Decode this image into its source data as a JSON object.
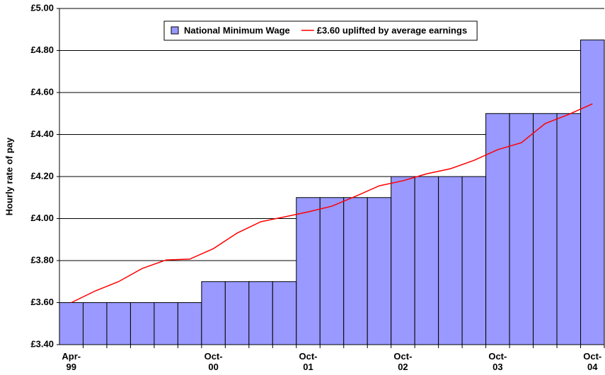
{
  "chart_data": {
    "type": "bar-line",
    "y_label": "Hourly rate of pay",
    "categories": [
      "Apr-\n99",
      null,
      null,
      null,
      null,
      null,
      "Oct-\n00",
      null,
      null,
      null,
      "Oct-\n01",
      null,
      null,
      null,
      "Oct-\n02",
      null,
      null,
      null,
      "Oct-\n03",
      null,
      null,
      null,
      "Oct-\n04"
    ],
    "series": [
      {
        "name": "National Minimum Wage",
        "kind": "bar",
        "color": "#9999ff",
        "values": [
          3.6,
          3.6,
          3.6,
          3.6,
          3.6,
          3.6,
          3.7,
          3.7,
          3.7,
          3.7,
          4.1,
          4.1,
          4.1,
          4.1,
          4.2,
          4.2,
          4.2,
          4.2,
          4.5,
          4.5,
          4.5,
          4.5,
          4.85
        ]
      },
      {
        "name": "£3.60 uplifted by average earnings",
        "kind": "line",
        "color": "#ff0000",
        "values": [
          3.6,
          3.655,
          3.7,
          3.763,
          3.803,
          3.807,
          3.857,
          3.931,
          3.985,
          4.008,
          4.032,
          4.059,
          4.106,
          4.156,
          4.18,
          4.213,
          4.237,
          4.277,
          4.328,
          4.361,
          4.452,
          4.496,
          4.546
        ]
      }
    ],
    "ylim": [
      3.4,
      5.0
    ],
    "yticks": [
      {
        "value": 3.4,
        "label": "£3.40"
      },
      {
        "value": 3.6,
        "label": "£3.60"
      },
      {
        "value": 3.8,
        "label": "£3.80"
      },
      {
        "value": 4.0,
        "label": "£4.00"
      },
      {
        "value": 4.2,
        "label": "£4.20"
      },
      {
        "value": 4.4,
        "label": "£4.40"
      },
      {
        "value": 4.6,
        "label": "£4.60"
      },
      {
        "value": 4.8,
        "label": "£4.80"
      },
      {
        "value": 5.0,
        "label": "£5.00"
      }
    ],
    "grid": true
  }
}
